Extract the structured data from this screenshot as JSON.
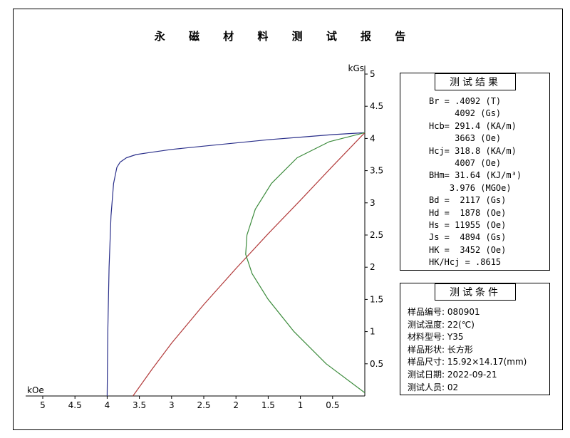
{
  "report_title": "永 磁 材 料 测 试 报 告",
  "results": {
    "title": "测试结果",
    "lines": [
      "Br = .4092 (T)",
      "     4092 (Gs)",
      "Hcb= 291.4 (KA/m)",
      "     3663 (Oe)",
      "Hcj= 318.8 (KA/m)",
      "     4007 (Oe)",
      "BHm= 31.64 (KJ/m³)",
      "    3.976 (MGOe)",
      "Bd =  2117 (Gs)",
      "Hd =  1878 (Oe)",
      "Hs = 11955 (Oe)",
      "Js =  4894 (Gs)",
      "HK =  3452 (Oe)",
      "HK/Hcj = .8615"
    ]
  },
  "conditions": {
    "title": "测试条件",
    "lines": [
      "样品编号: 080901",
      "测试温度: 22(℃)",
      "材料型号: Y35",
      "样品形状: 长方形",
      "样品尺寸: 15.92×14.17(mm)",
      "测试日期: 2022-09-21",
      "测试人员: 02"
    ]
  },
  "chart_data": {
    "type": "line",
    "xlabel": "kOe",
    "ylabel": "kGs",
    "xlim": [
      5,
      0
    ],
    "ylim": [
      0,
      5
    ],
    "x_ticks": [
      "5",
      "4.5",
      "4",
      "3.5",
      "3",
      "2.5",
      "2",
      "1.5",
      "1",
      "0.5"
    ],
    "y_ticks": [
      "0.5",
      "1",
      "1.5",
      "2",
      "2.5",
      "3",
      "3.5",
      "4",
      "4.5",
      "5"
    ],
    "grid": false,
    "colors": {
      "intrinsic": "#2a2f8a",
      "normal": "#b23a3a",
      "energy": "#3a8a3a"
    },
    "series": [
      {
        "key": "intrinsic",
        "x": [
          4.0,
          3.99,
          3.97,
          3.94,
          3.9,
          3.85,
          3.8,
          3.7,
          3.55,
          3.35,
          3.0,
          2.5,
          2.0,
          1.5,
          1.0,
          0.5,
          0.0
        ],
        "y": [
          0.0,
          1.0,
          2.0,
          2.8,
          3.3,
          3.55,
          3.63,
          3.7,
          3.75,
          3.78,
          3.83,
          3.88,
          3.93,
          3.98,
          4.02,
          4.06,
          4.09
        ]
      },
      {
        "key": "normal",
        "x": [
          3.6,
          3.3,
          3.0,
          2.5,
          2.0,
          1.5,
          1.0,
          0.5,
          0.0
        ],
        "y": [
          0.0,
          0.42,
          0.82,
          1.42,
          1.98,
          2.52,
          3.04,
          3.57,
          4.09
        ]
      },
      {
        "key": "energy",
        "x": [
          0.0,
          0.6,
          1.1,
          1.5,
          1.75,
          1.85,
          1.83,
          1.7,
          1.45,
          1.05,
          0.55,
          0.0
        ],
        "y": [
          0.05,
          0.5,
          1.0,
          1.5,
          1.9,
          2.2,
          2.5,
          2.9,
          3.3,
          3.7,
          3.95,
          4.09
        ]
      }
    ]
  }
}
